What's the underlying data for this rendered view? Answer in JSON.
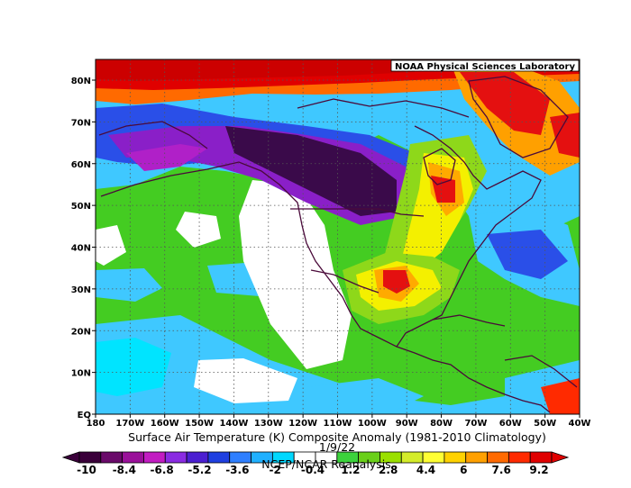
{
  "header": {
    "lab_label": "NOAA Physical Sciences Laboratory"
  },
  "axes": {
    "lat_labels": [
      "80N",
      "70N",
      "60N",
      "50N",
      "40N",
      "30N",
      "20N",
      "10N",
      "EQ"
    ],
    "lon_labels": [
      "180",
      "170W",
      "160W",
      "150W",
      "140W",
      "130W",
      "120W",
      "110W",
      "100W",
      "90W",
      "80W",
      "70W",
      "60W",
      "50W",
      "40W"
    ]
  },
  "caption": {
    "title": "Surface Air Temperature (K) Composite Anomaly (1981-2010 Climatology)",
    "date": "1/9/22",
    "source": "NCEP/NCAR Reanalysis"
  },
  "colorbar": {
    "tick_labels": [
      "-10",
      "-8.4",
      "-6.8",
      "-5.2",
      "-3.6",
      "-2",
      "-0.4",
      "1.2",
      "2.8",
      "4.4",
      "6",
      "7.6",
      "9.2"
    ],
    "colors": [
      "#3a003a",
      "#6a0a6a",
      "#9a109a",
      "#c21cc2",
      "#8a2be2",
      "#4b1fd1",
      "#1f3fe0",
      "#2f7fff",
      "#20b0ff",
      "#00d8ff",
      "#ffffff",
      "#ffffff",
      "#3cd23c",
      "#6ad01a",
      "#9ae000",
      "#d4ec2a",
      "#ffff33",
      "#ffd200",
      "#ffa000",
      "#ff6a00",
      "#ff2a00",
      "#e00000"
    ]
  },
  "map": {
    "colors": {
      "purple_dark": "#3a0a4a",
      "purple": "#8a1fc8",
      "magenta": "#b020c8",
      "blue": "#2a4fe8",
      "light_blue": "#3fc8ff",
      "cyan": "#00e4ff",
      "white": "#ffffff",
      "green": "#44cc22",
      "light_green": "#8ed81a",
      "yellow": "#f4f000",
      "orange": "#ffaa00",
      "red": "#e41010",
      "dark_red": "#cc0000"
    }
  }
}
